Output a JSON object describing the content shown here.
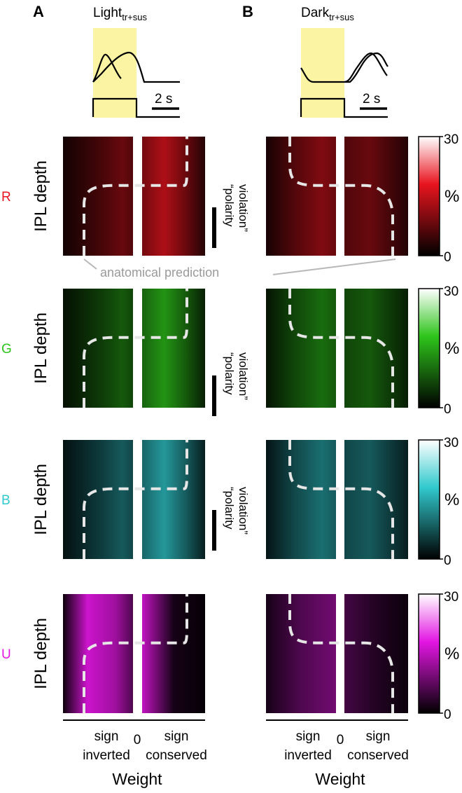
{
  "panels": [
    {
      "letter": "A",
      "title": "Light",
      "subscript": "tr+sus"
    },
    {
      "letter": "B",
      "title": "Dark",
      "subscript": "tr+sus"
    }
  ],
  "time_bar_label": "2 s",
  "y_label": "IPL depth",
  "channels": [
    {
      "label": "R",
      "color": "#e8141e"
    },
    {
      "label": "G",
      "color": "#2ec51b"
    },
    {
      "label": "B",
      "color": "#30c9cd"
    },
    {
      "label": "U",
      "color": "#e316e3"
    }
  ],
  "polarity_label": "“polarity violation”",
  "anatomical_label": "anatomical prediction",
  "colorbar": {
    "min": "0",
    "max": "30",
    "unit": "%"
  },
  "x_axis": {
    "left_label": "sign inverted",
    "zero": "0",
    "right_label": "sign conserved",
    "title": "Weight"
  },
  "chart_data": {
    "type": "heatmap",
    "columns": [
      "Light tr+sus",
      "Dark tr+sus"
    ],
    "rows": [
      "R",
      "G",
      "B",
      "U"
    ],
    "x_categories": [
      "sign inverted",
      "sign conserved"
    ],
    "y_label": "IPL depth",
    "x_label": "Weight",
    "colorbar_range": [
      0,
      30
    ],
    "colorbar_unit": "%"
  }
}
